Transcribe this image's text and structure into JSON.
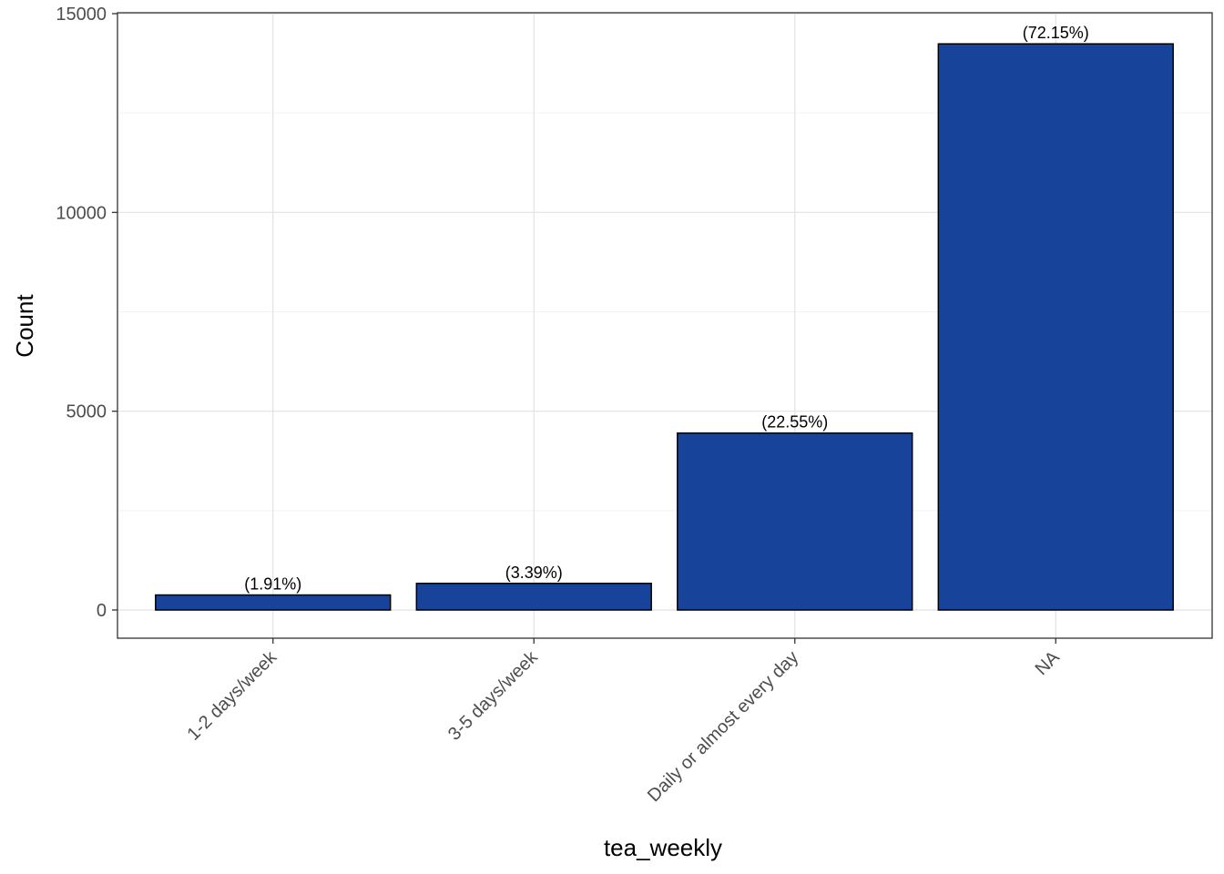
{
  "chart_data": {
    "type": "bar",
    "categories": [
      "1-2 days/week",
      "3-5 days/week",
      "Daily or almost every day",
      "NA"
    ],
    "values": [
      377,
      669,
      4450,
      14240
    ],
    "labels": [
      "(1.91%)",
      "(3.39%)",
      "(22.55%)",
      "(72.15%)"
    ],
    "xlabel": "tea_weekly",
    "ylabel": "Count",
    "ylim": [
      0,
      15000
    ],
    "yticks": [
      0,
      5000,
      10000,
      15000
    ],
    "grid": true,
    "bar_color": "#17439a",
    "bar_outline": "#000000"
  }
}
